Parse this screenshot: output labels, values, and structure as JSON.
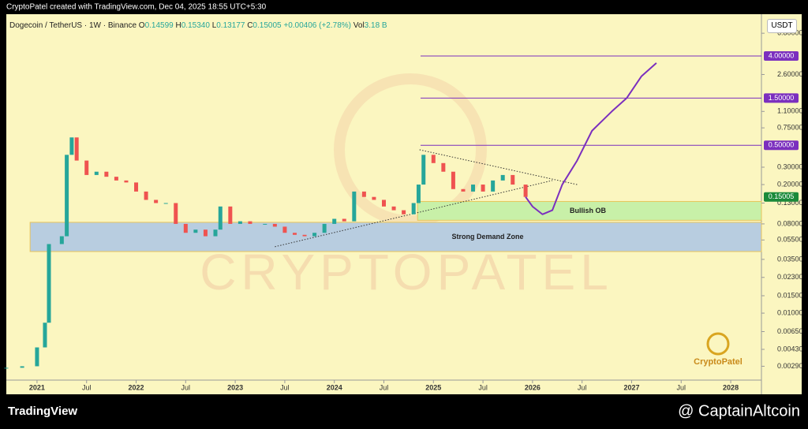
{
  "header": {
    "credit": "CryptoPatel created with TradingView.com, Dec 04, 2025 18:55 UTC+5:30"
  },
  "footer": {
    "brand": "TradingView",
    "source": "@ CaptainAltcoin"
  },
  "chart_data": {
    "type": "candlestick",
    "log_scale": true,
    "symbol": "Dogecoin / TetherUS · 1W · Binance",
    "ohlc": {
      "o_label": "O",
      "open": "0.14599",
      "h_label": "H",
      "high": "0.15340",
      "l_label": "L",
      "low": "0.13177",
      "c_label": "C",
      "close": "0.15005",
      "change": "+0.00406 (+2.78%)",
      "vol_label": "Vol",
      "volume": "3.18 B"
    },
    "currency": "USDT",
    "watermark": "CRYPTOPATEL",
    "logo": "CryptoPatel",
    "up_color": "#26a69a",
    "down_color": "#ef5350",
    "x": [
      2020.69,
      2020.85,
      2021.0,
      2021.08,
      2021.12,
      2021.25,
      2021.3,
      2021.35,
      2021.4,
      2021.5,
      2021.6,
      2021.7,
      2021.8,
      2021.9,
      2022.0,
      2022.1,
      2022.2,
      2022.3,
      2022.4,
      2022.5,
      2022.6,
      2022.7,
      2022.8,
      2022.85,
      2022.95,
      2023.05,
      2023.15,
      2023.3,
      2023.4,
      2023.5,
      2023.6,
      2023.7,
      2023.8,
      2023.9,
      2024.0,
      2024.1,
      2024.2,
      2024.3,
      2024.4,
      2024.5,
      2024.6,
      2024.7,
      2024.8,
      2024.85,
      2024.9,
      2025.0,
      2025.1,
      2025.2,
      2025.3,
      2025.4,
      2025.5,
      2025.6,
      2025.7,
      2025.8,
      2025.93
    ],
    "values": [
      0.0028,
      0.0029,
      0.0045,
      0.008,
      0.05,
      0.06,
      0.4,
      0.6,
      0.35,
      0.25,
      0.27,
      0.24,
      0.22,
      0.21,
      0.17,
      0.14,
      0.13,
      0.13,
      0.08,
      0.065,
      0.07,
      0.06,
      0.07,
      0.12,
      0.08,
      0.085,
      0.08,
      0.08,
      0.075,
      0.065,
      0.062,
      0.06,
      0.065,
      0.08,
      0.09,
      0.085,
      0.17,
      0.15,
      0.14,
      0.12,
      0.11,
      0.1,
      0.13,
      0.2,
      0.4,
      0.33,
      0.27,
      0.18,
      0.17,
      0.2,
      0.17,
      0.22,
      0.25,
      0.2,
      0.15
    ],
    "projection": {
      "color": "#7b2fbe",
      "x": [
        2025.93,
        2026.0,
        2026.1,
        2026.2,
        2026.3,
        2026.45,
        2026.6,
        2026.8,
        2026.95,
        2027.1,
        2027.25
      ],
      "values": [
        0.15,
        0.12,
        0.1,
        0.11,
        0.2,
        0.35,
        0.7,
        1.1,
        1.5,
        2.5,
        3.4
      ]
    },
    "trendlines": [
      {
        "x": [
          2024.86,
          2026.45
        ],
        "values": [
          0.45,
          0.2
        ]
      },
      {
        "x": [
          2023.4,
          2026.2
        ],
        "values": [
          0.047,
          0.22
        ]
      }
    ],
    "zones": [
      {
        "label": "Strong Demand Zone",
        "color": "#b8cde0",
        "x": [
          2020.93,
          2028.31
        ],
        "values": [
          0.042,
          0.083
        ]
      },
      {
        "label": "Bullish OB",
        "color": "#c8f0a8",
        "x": [
          2024.84,
          2028.31
        ],
        "values": [
          0.087,
          0.135
        ]
      }
    ],
    "levels": [
      {
        "value": 4,
        "label": "4.00000"
      },
      {
        "value": 1.5,
        "label": "1.50000"
      },
      {
        "value": 0.5,
        "label": "0.50000"
      }
    ],
    "levels_x": 2024.87,
    "level_color": "#7b2fbe",
    "last_price": {
      "value": 0.15005,
      "label": "0.15005"
    },
    "xlim": [
      2020.69,
      2028.31
    ],
    "ylim": [
      0.0021,
      11.2
    ],
    "xticks": [
      {
        "value": 2021,
        "label": "2021"
      },
      {
        "value": 2021.5,
        "label": "Jul"
      },
      {
        "value": 2022,
        "label": "2022"
      },
      {
        "value": 2022.5,
        "label": "Jul"
      },
      {
        "value": 2023,
        "label": "2023"
      },
      {
        "value": 2023.5,
        "label": "Jul"
      },
      {
        "value": 2024,
        "label": "2024"
      },
      {
        "value": 2024.5,
        "label": "Jul"
      },
      {
        "value": 2025,
        "label": "2025"
      },
      {
        "value": 2025.5,
        "label": "Jul"
      },
      {
        "value": 2026,
        "label": "2026"
      },
      {
        "value": 2026.5,
        "label": "Jul"
      },
      {
        "value": 2027,
        "label": "2027"
      },
      {
        "value": 2027.5,
        "label": "Jul"
      },
      {
        "value": 2028,
        "label": "2028"
      }
    ],
    "yticks": [
      {
        "value": 6.8,
        "label": "6.80000"
      },
      {
        "value": 2.6,
        "label": "2.60000"
      },
      {
        "value": 1.1,
        "label": "1.10000"
      },
      {
        "value": 0.75,
        "label": "0.75000"
      },
      {
        "value": 0.3,
        "label": "0.30000"
      },
      {
        "value": 0.2,
        "label": "0.20000"
      },
      {
        "value": 0.13,
        "label": "0.13000"
      },
      {
        "value": 0.08,
        "label": "0.08000"
      },
      {
        "value": 0.055,
        "label": "0.05500"
      },
      {
        "value": 0.035,
        "label": "0.03500"
      },
      {
        "value": 0.023,
        "label": "0.02300"
      },
      {
        "value": 0.015,
        "label": "0.01500"
      },
      {
        "value": 0.01,
        "label": "0.01000"
      },
      {
        "value": 0.0065,
        "label": "0.00650"
      },
      {
        "value": 0.0043,
        "label": "0.00430"
      },
      {
        "value": 0.0029,
        "label": "0.00290"
      }
    ]
  }
}
